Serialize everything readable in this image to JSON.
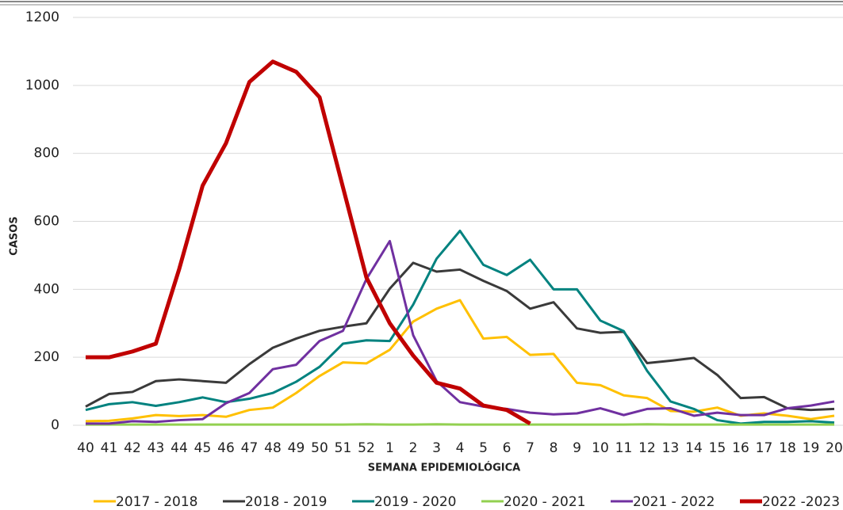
{
  "chart_data": {
    "type": "line",
    "y_label": "CASOS",
    "x_label": "SEMANA EPIDEMIOLÓGICA",
    "categories": [
      "40",
      "41",
      "42",
      "43",
      "44",
      "45",
      "46",
      "47",
      "48",
      "49",
      "50",
      "51",
      "52",
      "1",
      "2",
      "3",
      "4",
      "5",
      "6",
      "7",
      "8",
      "9",
      "10",
      "11",
      "12",
      "13",
      "14",
      "15",
      "16",
      "17",
      "18",
      "19",
      "20"
    ],
    "ylim": [
      0,
      1200
    ],
    "yticks": [
      0,
      200,
      400,
      600,
      800,
      1000,
      1200
    ],
    "grid": true,
    "legend": "bottom",
    "series": [
      {
        "name": "2017 - 2018",
        "color": "#ffc000",
        "values": [
          12,
          13,
          20,
          30,
          27,
          30,
          25,
          45,
          52,
          95,
          145,
          185,
          182,
          222,
          305,
          343,
          368,
          255,
          260,
          207,
          210,
          125,
          118,
          88,
          80,
          42,
          40,
          52,
          28,
          35,
          28,
          18,
          28
        ]
      },
      {
        "name": "2018 - 2019",
        "color": "#3a3a3a",
        "values": [
          55,
          92,
          98,
          130,
          135,
          130,
          125,
          180,
          228,
          255,
          278,
          290,
          300,
          402,
          478,
          452,
          458,
          425,
          395,
          343,
          362,
          285,
          272,
          275,
          183,
          190,
          198,
          148,
          80,
          83,
          50,
          45,
          48
        ]
      },
      {
        "name": "2019 - 2020",
        "color": "#00827f",
        "values": [
          45,
          62,
          68,
          57,
          68,
          82,
          68,
          78,
          95,
          128,
          172,
          240,
          250,
          248,
          355,
          490,
          572,
          472,
          442,
          487,
          400,
          400,
          308,
          277,
          160,
          70,
          48,
          15,
          5,
          10,
          10,
          12,
          8
        ]
      },
      {
        "name": "2020 - 2021",
        "color": "#92d050",
        "values": [
          2,
          2,
          2,
          2,
          2,
          2,
          2,
          2,
          2,
          2,
          2,
          2,
          3,
          2,
          2,
          3,
          2,
          2,
          2,
          2,
          2,
          2,
          2,
          2,
          3,
          2,
          2,
          2,
          2,
          2,
          2,
          2,
          2
        ]
      },
      {
        "name": "2021 - 2022",
        "color": "#7030a0",
        "values": [
          5,
          5,
          12,
          10,
          15,
          18,
          65,
          95,
          165,
          178,
          248,
          278,
          430,
          542,
          265,
          130,
          68,
          55,
          48,
          37,
          32,
          35,
          50,
          30,
          48,
          50,
          28,
          37,
          30,
          30,
          50,
          58,
          70
        ]
      },
      {
        "name": "2022 -2023",
        "color": "#c00000",
        "values": [
          200,
          200,
          217,
          240,
          460,
          705,
          830,
          1010,
          1070,
          1040,
          965,
          700,
          435,
          300,
          205,
          125,
          108,
          58,
          45,
          5,
          null,
          null,
          null,
          null,
          null,
          null,
          null,
          null,
          null,
          null,
          null,
          null,
          null
        ]
      }
    ]
  }
}
